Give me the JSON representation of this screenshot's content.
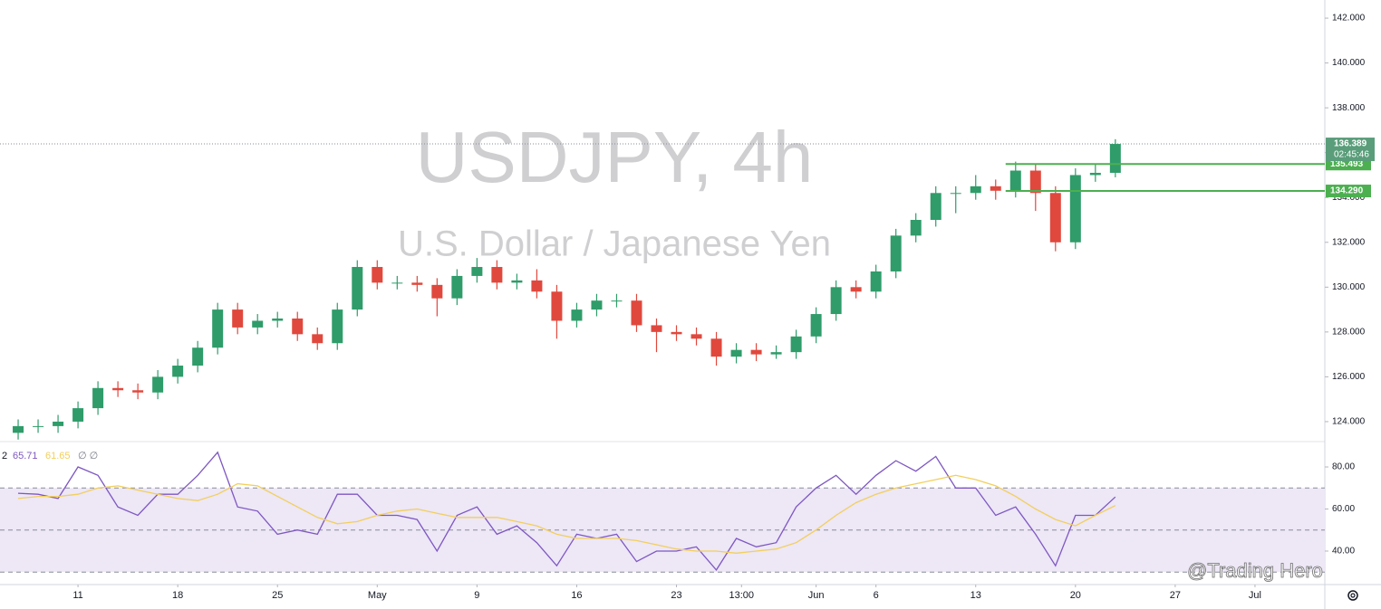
{
  "chart_data": [
    {
      "type": "candlestick",
      "title": "USDJPY, 4h",
      "subtitle": "U.S. Dollar / Japanese Yen",
      "x": [
        2,
        3,
        4,
        5,
        6,
        7,
        8,
        9,
        10,
        11,
        12,
        13,
        14,
        15,
        16,
        17,
        18,
        19,
        20,
        21,
        22,
        23,
        24,
        25,
        26,
        27,
        28,
        29,
        30,
        31,
        32,
        33,
        34,
        35,
        36,
        37,
        38,
        39,
        40,
        41,
        42,
        43,
        44,
        45,
        46,
        47,
        48,
        49,
        50,
        51,
        52,
        53,
        54,
        55,
        56,
        57
      ],
      "open": [
        123.5,
        123.8,
        123.8,
        124.0,
        124.6,
        125.5,
        125.4,
        125.3,
        126.0,
        126.5,
        127.3,
        129.0,
        128.2,
        128.5,
        128.6,
        127.9,
        127.5,
        129.0,
        130.9,
        130.2,
        130.2,
        130.1,
        129.5,
        130.5,
        130.9,
        130.2,
        130.3,
        129.8,
        128.5,
        129.0,
        129.4,
        129.4,
        128.3,
        128.0,
        127.9,
        127.7,
        126.9,
        127.2,
        127.0,
        127.1,
        127.8,
        128.8,
        130.0,
        129.8,
        130.7,
        132.3,
        133.0,
        134.2,
        134.2,
        134.5,
        134.3,
        135.2,
        134.2,
        132.0,
        135.0,
        135.1
      ],
      "high": [
        124.1,
        124.1,
        124.3,
        124.9,
        125.8,
        125.8,
        125.7,
        126.3,
        126.8,
        127.6,
        129.3,
        129.3,
        128.8,
        128.9,
        128.9,
        128.2,
        129.3,
        131.2,
        131.2,
        130.5,
        130.5,
        130.4,
        130.8,
        131.3,
        131.2,
        130.6,
        130.8,
        130.1,
        129.3,
        129.7,
        129.7,
        129.7,
        128.6,
        128.3,
        128.2,
        128.0,
        127.5,
        127.5,
        127.4,
        128.1,
        129.1,
        130.3,
        130.3,
        131.0,
        132.6,
        133.3,
        134.5,
        134.5,
        135.0,
        134.8,
        135.6,
        135.5,
        134.5,
        135.3,
        135.5,
        136.6
      ],
      "low": [
        123.2,
        123.5,
        123.5,
        123.7,
        124.3,
        125.1,
        125.0,
        125.0,
        125.7,
        126.2,
        127.0,
        127.9,
        127.9,
        128.2,
        127.6,
        127.2,
        127.2,
        128.7,
        129.9,
        129.9,
        129.8,
        128.7,
        129.2,
        130.2,
        129.9,
        129.9,
        129.5,
        127.7,
        128.2,
        128.7,
        129.1,
        128.0,
        127.1,
        127.6,
        127.4,
        126.5,
        126.6,
        126.7,
        126.8,
        126.8,
        127.5,
        128.5,
        129.5,
        129.5,
        130.4,
        132.0,
        132.7,
        133.3,
        133.9,
        133.9,
        134.0,
        133.4,
        131.6,
        131.7,
        134.7,
        134.9
      ],
      "close": [
        123.8,
        123.8,
        124.0,
        124.6,
        125.5,
        125.4,
        125.3,
        126.0,
        126.5,
        127.3,
        129.0,
        128.2,
        128.5,
        128.6,
        127.9,
        127.5,
        129.0,
        130.9,
        130.2,
        130.2,
        130.1,
        129.5,
        130.5,
        130.9,
        130.2,
        130.3,
        129.8,
        128.5,
        129.0,
        129.4,
        129.4,
        128.3,
        128.0,
        127.9,
        127.7,
        126.9,
        127.2,
        127.0,
        127.1,
        127.8,
        128.8,
        130.0,
        129.8,
        130.7,
        132.3,
        133.0,
        134.2,
        134.2,
        134.5,
        134.3,
        135.2,
        134.2,
        132.0,
        135.0,
        135.1,
        136.389
      ],
      "up_color": "#2f9c6a",
      "down_color": "#e0483d",
      "countdown": "02:45:46",
      "last_price_color": "#5a9d7a",
      "levels": [
        {
          "value": 135.493,
          "label": "135.493",
          "from_x": 51.5,
          "color": "#4caf50"
        },
        {
          "value": 134.29,
          "label": "134.290",
          "from_x": 51.5,
          "color": "#4caf50"
        }
      ],
      "xlim": [
        1.09,
        67.5
      ],
      "ylim": [
        123.15,
        142.81
      ],
      "yticks": [
        {
          "value": 124,
          "label": "124.000"
        },
        {
          "value": 126,
          "label": "126.000"
        },
        {
          "value": 128,
          "label": "128.000"
        },
        {
          "value": 130,
          "label": "130.000"
        },
        {
          "value": 132,
          "label": "132.000"
        },
        {
          "value": 134,
          "label": "134.000"
        },
        {
          "value": 136,
          "label": "136.000"
        },
        {
          "value": 138,
          "label": "138.000"
        },
        {
          "value": 140,
          "label": "140.000"
        },
        {
          "value": 142,
          "label": "142.000"
        }
      ],
      "grid": false
    },
    {
      "type": "line",
      "label": "2",
      "legend_extra": "∅ ∅",
      "x": [
        2,
        3,
        4,
        5,
        6,
        7,
        8,
        9,
        10,
        11,
        12,
        13,
        14,
        15,
        16,
        17,
        18,
        19,
        20,
        21,
        22,
        23,
        24,
        25,
        26,
        27,
        28,
        29,
        30,
        31,
        32,
        33,
        34,
        35,
        36,
        37,
        38,
        39,
        40,
        41,
        42,
        43,
        44,
        45,
        46,
        47,
        48,
        49,
        50,
        51,
        52,
        53,
        54,
        55,
        56,
        57
      ],
      "series": [
        {
          "color": "#7e57c2",
          "values": [
            67.5,
            67,
            65,
            80,
            76,
            61,
            57,
            67,
            67,
            76,
            87,
            61,
            59,
            48,
            50,
            48,
            67,
            67,
            57,
            57,
            55,
            40,
            57,
            61,
            48,
            52,
            44,
            33,
            48,
            46,
            48,
            35,
            40,
            40,
            42,
            31,
            46,
            42,
            44,
            61,
            70,
            76,
            67,
            76,
            83,
            78,
            85,
            70,
            70,
            57,
            61,
            48,
            33,
            57,
            57,
            65.71
          ]
        },
        {
          "color": "#f2cf5b",
          "values": [
            65,
            66,
            66,
            67,
            70,
            71,
            69,
            67,
            65,
            64,
            67,
            72,
            71,
            66,
            61,
            56,
            53,
            54,
            57,
            59,
            60,
            58,
            56,
            56,
            56,
            54,
            52,
            48,
            46,
            46,
            46,
            45,
            43,
            41,
            40,
            40,
            39,
            40,
            41,
            44,
            50,
            57,
            63,
            67,
            70,
            72,
            74,
            76,
            74,
            71,
            66,
            60,
            55,
            52,
            57,
            61.65
          ]
        }
      ],
      "band": [
        30,
        70
      ],
      "band_color": "#ede7f6",
      "hlines": [
        70,
        50,
        30
      ],
      "xlim": [
        1.09,
        67.5
      ],
      "ylim": [
        24.5,
        91.2
      ],
      "yticks": [
        {
          "value": 40,
          "label": "40.00"
        },
        {
          "value": 60,
          "label": "60.00"
        },
        {
          "value": 80,
          "label": "80.00"
        }
      ],
      "xticks": [
        {
          "value": 5,
          "label": "11"
        },
        {
          "value": 10,
          "label": "18"
        },
        {
          "value": 15,
          "label": "25"
        },
        {
          "value": 20,
          "label": "May"
        },
        {
          "value": 25,
          "label": "9"
        },
        {
          "value": 30,
          "label": "16"
        },
        {
          "value": 35,
          "label": "23"
        },
        {
          "value": 38.26,
          "label": "13:00"
        },
        {
          "value": 42,
          "label": "Jun"
        },
        {
          "value": 45,
          "label": "6"
        },
        {
          "value": 50,
          "label": "13"
        },
        {
          "value": 55,
          "label": "20"
        },
        {
          "value": 60,
          "label": "27"
        },
        {
          "value": 64,
          "label": "Jul"
        }
      ],
      "grid": false
    }
  ],
  "watermark": "@Trading Hero"
}
